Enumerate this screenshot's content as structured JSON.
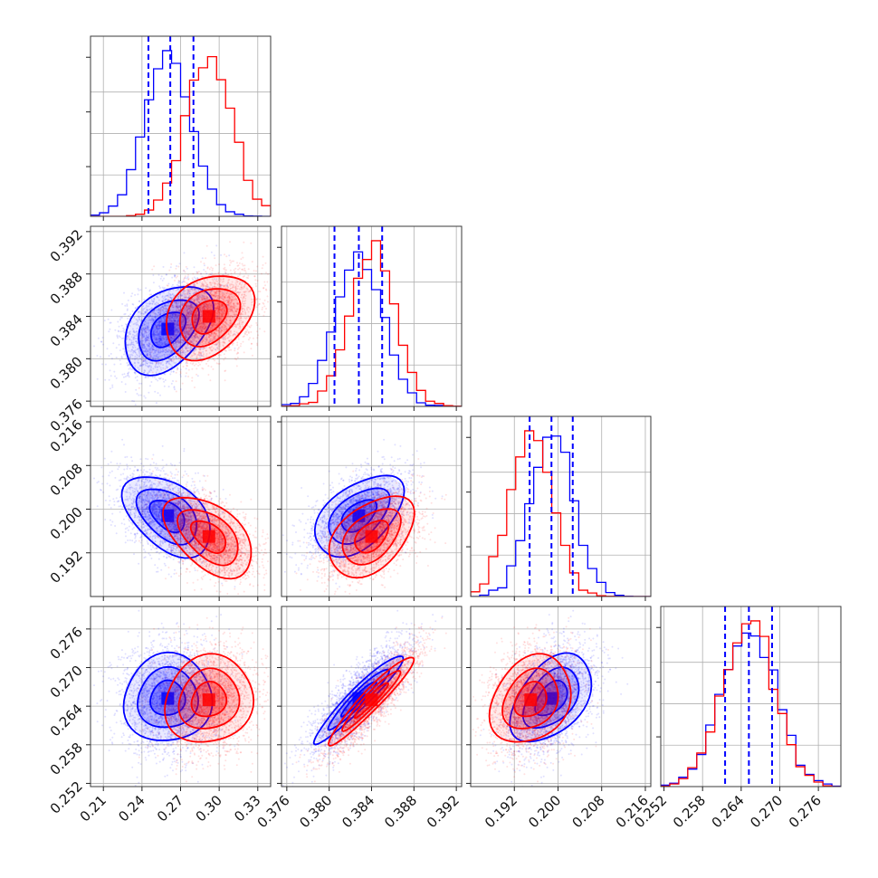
{
  "chart_data": {
    "type": "corner",
    "colors": {
      "blue": "#0000ff",
      "red": "#ff0000"
    },
    "grid": true,
    "parameters": [
      {
        "range": [
          0.2,
          0.34
        ],
        "ticks": [
          "0.21",
          "0.24",
          "0.27",
          "0.30",
          "0.33"
        ]
      },
      {
        "range": [
          0.3755,
          0.3925
        ],
        "ticks": [
          "0.376",
          "0.380",
          "0.384",
          "0.388",
          "0.392"
        ]
      },
      {
        "range": [
          0.184,
          0.217
        ],
        "ticks": [
          "0.192",
          "0.200",
          "0.208",
          "0.216"
        ]
      },
      {
        "range": [
          0.2515,
          0.2795
        ],
        "ticks": [
          "0.252",
          "0.258",
          "0.264",
          "0.270",
          "0.276"
        ]
      }
    ],
    "quantiles_blue": [
      [
        0.245,
        0.262,
        0.28
      ],
      [
        0.3805,
        0.3828,
        0.385
      ],
      [
        0.1948,
        0.1988,
        0.2027
      ],
      [
        0.2615,
        0.2652,
        0.2688
      ]
    ],
    "series": [
      {
        "color": "blue",
        "means": [
          0.26,
          0.3828,
          0.1988,
          0.2652
        ],
        "sds": [
          0.018,
          0.0022,
          0.0039,
          0.0036
        ]
      },
      {
        "color": "red",
        "means": [
          0.292,
          0.384,
          0.195,
          0.265
        ],
        "sds": [
          0.018,
          0.0021,
          0.0039,
          0.0036
        ]
      }
    ],
    "correlations": {
      "blue": {
        "1-0": 0.4,
        "2-0": -0.45,
        "2-1": 0.5,
        "3-0": 0.05,
        "3-1": 0.95,
        "3-2": 0.45
      },
      "red": {
        "1-0": 0.3,
        "2-0": -0.5,
        "2-1": 0.45,
        "3-0": 0.1,
        "3-1": 0.95,
        "3-2": 0.25
      }
    }
  }
}
